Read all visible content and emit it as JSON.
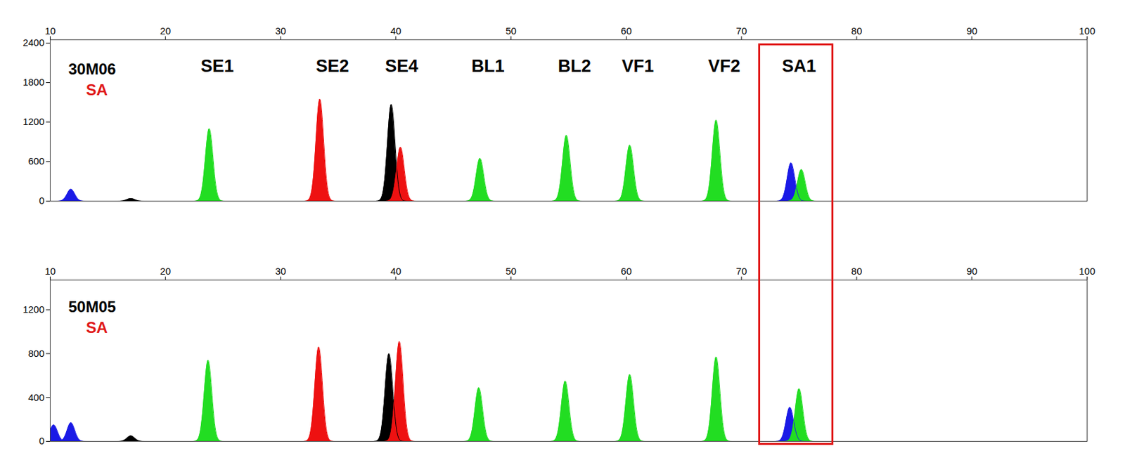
{
  "chart_data": [
    {
      "type": "area",
      "title": "30M06",
      "subtitle": "SA",
      "xlim": [
        10,
        100
      ],
      "xticks": [
        10,
        20,
        30,
        40,
        50,
        60,
        70,
        80,
        90,
        100
      ],
      "ylim": [
        0,
        2450
      ],
      "yticks": [
        0,
        600,
        1200,
        1800,
        2400
      ],
      "annotations": [
        {
          "text": "SE1",
          "x": 24.5
        },
        {
          "text": "SE2",
          "x": 34.5
        },
        {
          "text": "SE4",
          "x": 40.5
        },
        {
          "text": "BL1",
          "x": 48
        },
        {
          "text": "BL2",
          "x": 55.5
        },
        {
          "text": "VF1",
          "x": 61
        },
        {
          "text": "VF2",
          "x": 68.5
        },
        {
          "text": "SA1",
          "x": 75
        }
      ],
      "highlight": [
        71.5,
        78
      ],
      "peaks": [
        {
          "x": 11.8,
          "value": 180,
          "color": "#1a1ae6"
        },
        {
          "x": 17.0,
          "value": 40,
          "color": "#000000"
        },
        {
          "x": 23.8,
          "value": 1100,
          "color": "#22dd22"
        },
        {
          "x": 33.4,
          "value": 1550,
          "color": "#ee1111"
        },
        {
          "x": 39.6,
          "value": 1470,
          "color": "#000000"
        },
        {
          "x": 40.4,
          "value": 820,
          "color": "#ee1111"
        },
        {
          "x": 47.3,
          "value": 650,
          "color": "#22dd22"
        },
        {
          "x": 54.8,
          "value": 1000,
          "color": "#22dd22"
        },
        {
          "x": 60.3,
          "value": 850,
          "color": "#22dd22"
        },
        {
          "x": 67.8,
          "value": 1230,
          "color": "#22dd22"
        },
        {
          "x": 74.3,
          "value": 580,
          "color": "#1a1ae6"
        },
        {
          "x": 75.2,
          "value": 480,
          "color": "#22dd22"
        }
      ]
    },
    {
      "type": "area",
      "title": "50M05",
      "subtitle": "SA",
      "xlim": [
        10,
        100
      ],
      "xticks": [
        10,
        20,
        30,
        40,
        50,
        60,
        70,
        80,
        90,
        100
      ],
      "ylim": [
        0,
        1470
      ],
      "yticks": [
        0,
        400,
        800,
        1200
      ],
      "peaks": [
        {
          "x": 10.3,
          "value": 150,
          "color": "#1a1ae6"
        },
        {
          "x": 11.8,
          "value": 170,
          "color": "#1a1ae6"
        },
        {
          "x": 17.0,
          "value": 50,
          "color": "#000000"
        },
        {
          "x": 23.7,
          "value": 740,
          "color": "#22dd22"
        },
        {
          "x": 33.3,
          "value": 860,
          "color": "#ee1111"
        },
        {
          "x": 39.4,
          "value": 800,
          "color": "#000000"
        },
        {
          "x": 40.3,
          "value": 910,
          "color": "#ee1111"
        },
        {
          "x": 47.2,
          "value": 490,
          "color": "#22dd22"
        },
        {
          "x": 54.7,
          "value": 550,
          "color": "#22dd22"
        },
        {
          "x": 60.3,
          "value": 610,
          "color": "#22dd22"
        },
        {
          "x": 67.8,
          "value": 770,
          "color": "#22dd22"
        },
        {
          "x": 74.2,
          "value": 310,
          "color": "#1a1ae6"
        },
        {
          "x": 75.0,
          "value": 480,
          "color": "#22dd22"
        }
      ]
    }
  ]
}
